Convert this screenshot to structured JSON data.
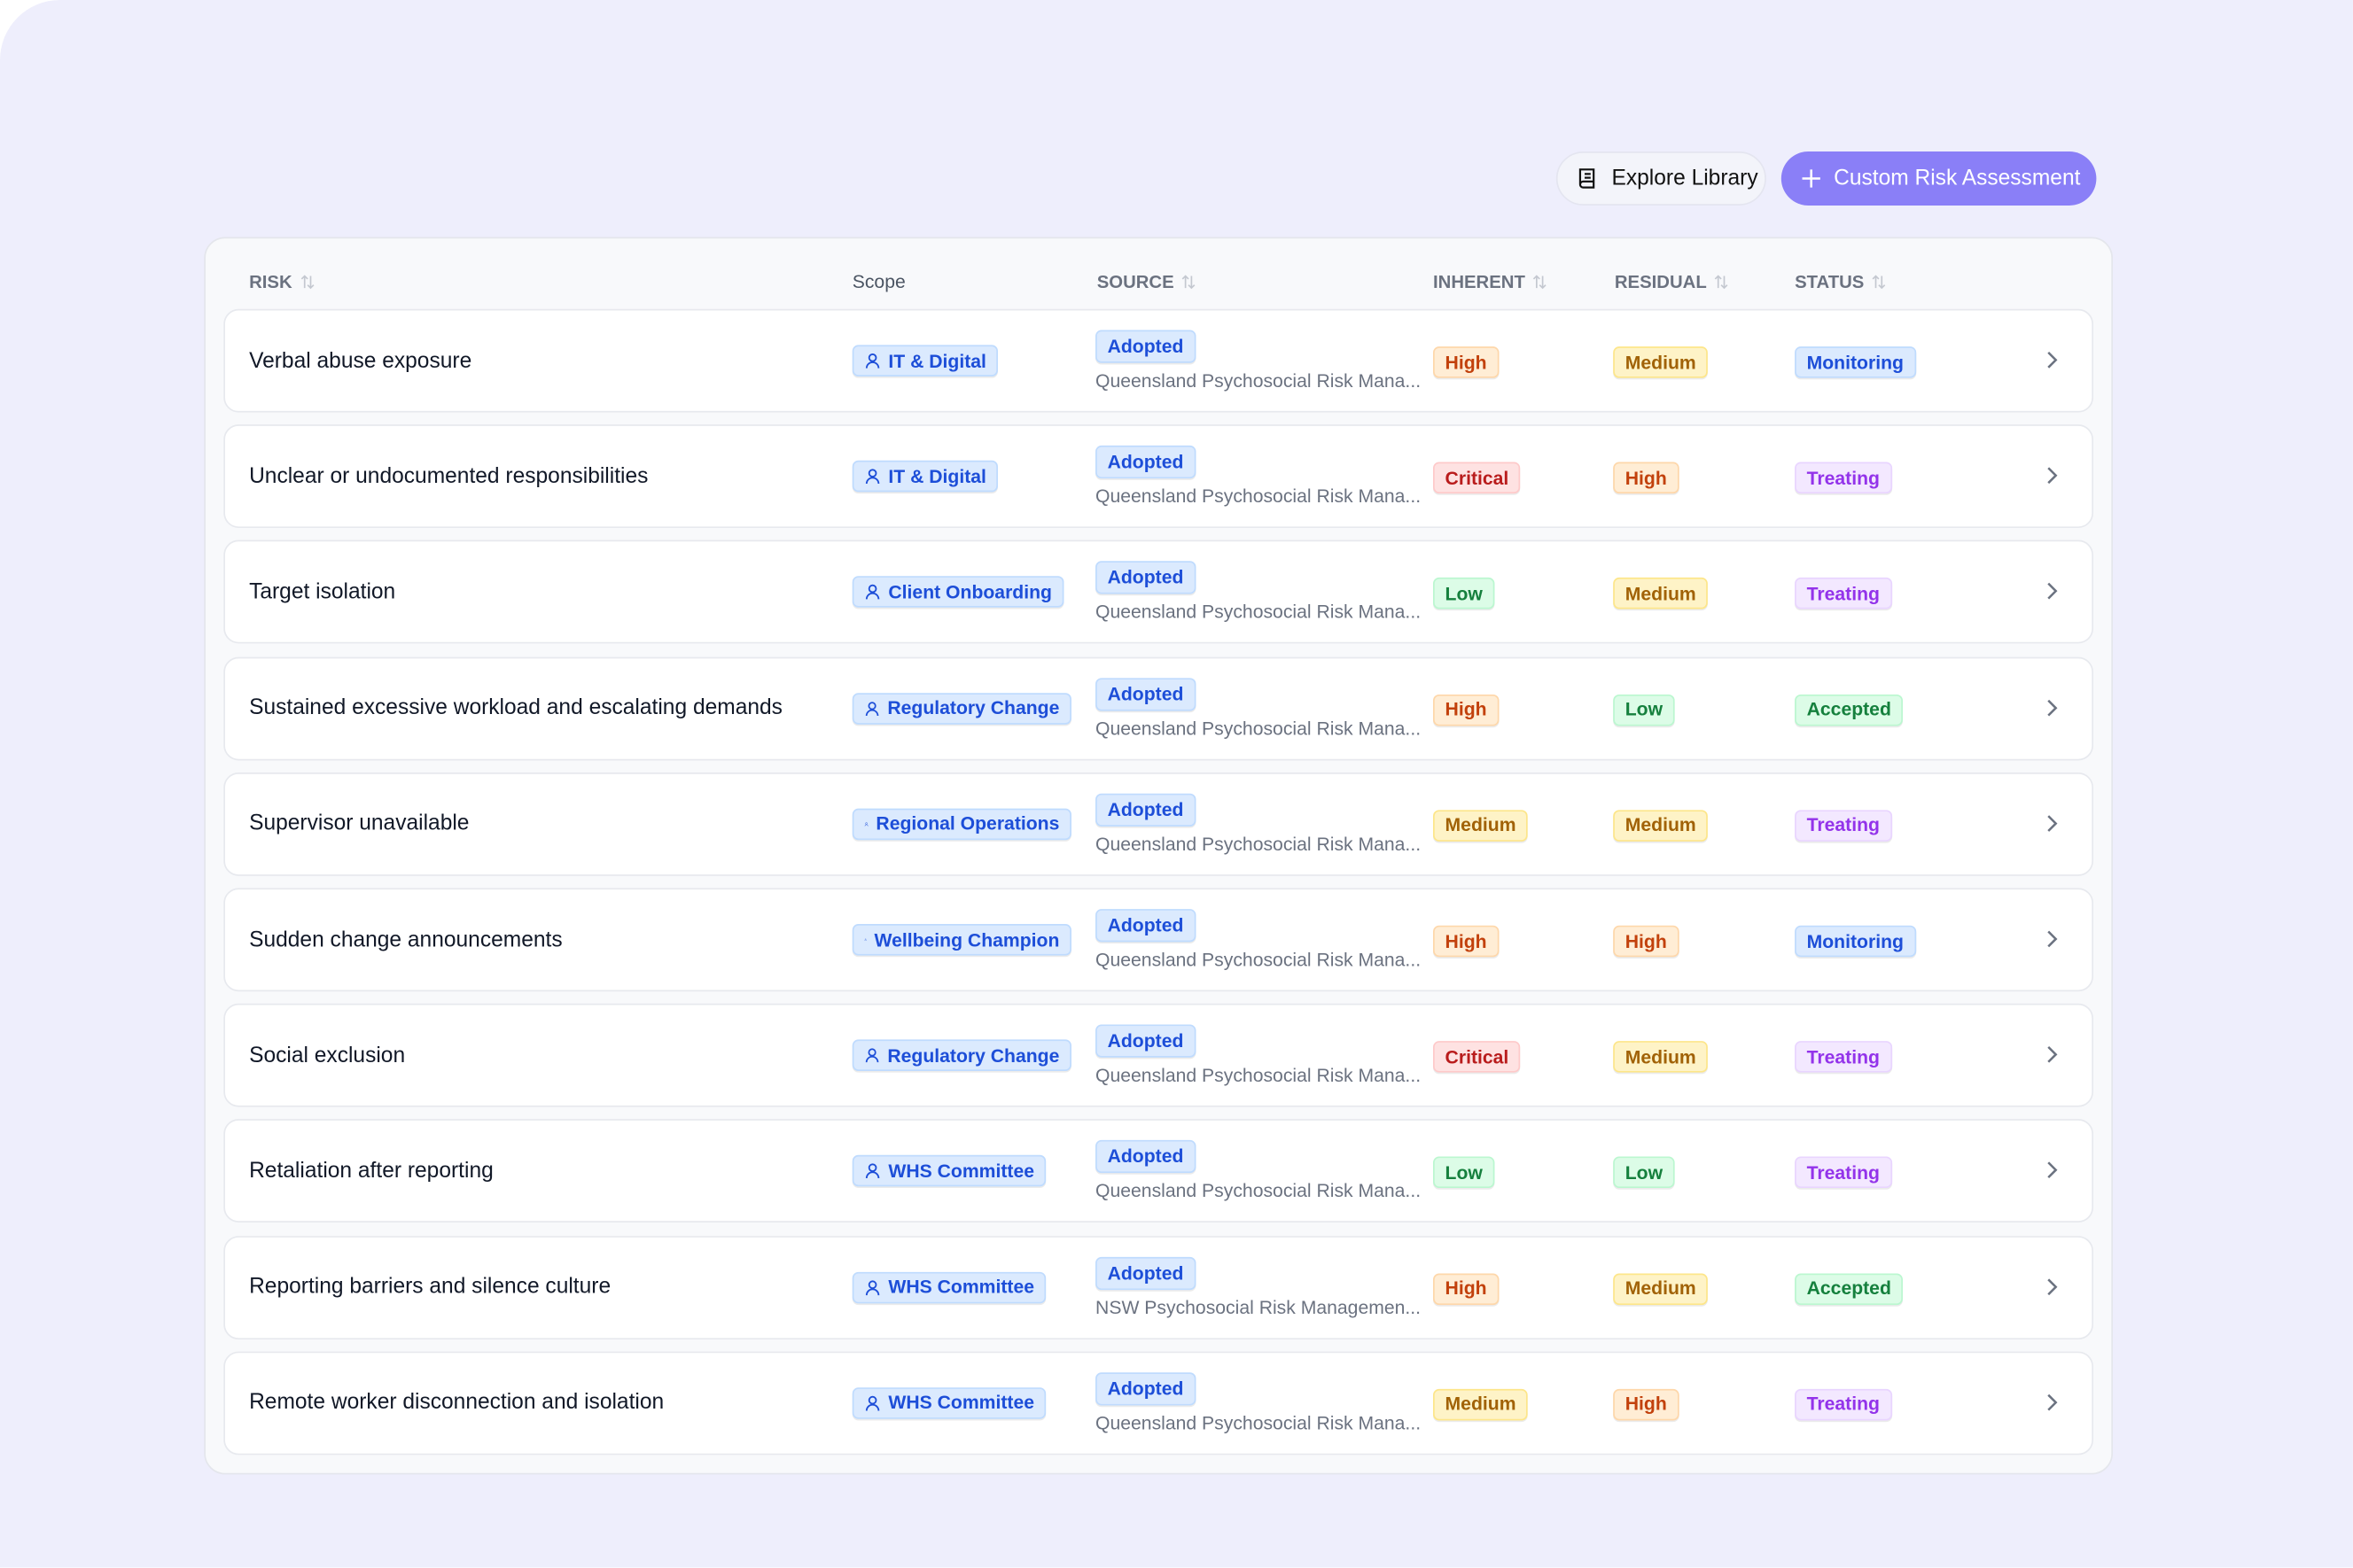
{
  "toolbar": {
    "explore_button": "Explore Library",
    "custom_button": "Custom Risk Assessment"
  },
  "table": {
    "headers": [
      "RISK",
      "Scope",
      "SOURCE",
      "INHERENT",
      "RESIDUAL",
      "STATUS"
    ],
    "rows": [
      {
        "risk": "Verbal abuse exposure",
        "scope": "IT & Digital",
        "source_badge": "Adopted",
        "source": "Queensland Psychosocial Risk Mana...",
        "inherent": {
          "label": "High",
          "tone": "orange"
        },
        "residual": {
          "label": "Medium",
          "tone": "yellow"
        },
        "status": {
          "label": "Monitoring",
          "tone": "blue"
        }
      },
      {
        "risk": "Unclear or undocumented responsibilities",
        "scope": "IT & Digital",
        "source_badge": "Adopted",
        "source": "Queensland Psychosocial Risk Mana...",
        "inherent": {
          "label": "Critical",
          "tone": "red"
        },
        "residual": {
          "label": "High",
          "tone": "orange"
        },
        "status": {
          "label": "Treating",
          "tone": "purple"
        }
      },
      {
        "risk": "Target isolation",
        "scope": "Client Onboarding",
        "source_badge": "Adopted",
        "source": "Queensland Psychosocial Risk Mana...",
        "inherent": {
          "label": "Low",
          "tone": "green"
        },
        "residual": {
          "label": "Medium",
          "tone": "yellow"
        },
        "status": {
          "label": "Treating",
          "tone": "purple"
        }
      },
      {
        "risk": "Sustained excessive workload and escalating demands",
        "scope": "Regulatory Change",
        "source_badge": "Adopted",
        "source": "Queensland Psychosocial Risk Mana...",
        "inherent": {
          "label": "High",
          "tone": "orange"
        },
        "residual": {
          "label": "Low",
          "tone": "green"
        },
        "status": {
          "label": "Accepted",
          "tone": "green"
        }
      },
      {
        "risk": "Supervisor unavailable",
        "scope": "Regional Operations",
        "source_badge": "Adopted",
        "source": "Queensland Psychosocial Risk Mana...",
        "inherent": {
          "label": "Medium",
          "tone": "yellow"
        },
        "residual": {
          "label": "Medium",
          "tone": "yellow"
        },
        "status": {
          "label": "Treating",
          "tone": "purple"
        }
      },
      {
        "risk": "Sudden change announcements",
        "scope": "Wellbeing Champion",
        "source_badge": "Adopted",
        "source": "Queensland Psychosocial Risk Mana...",
        "inherent": {
          "label": "High",
          "tone": "orange"
        },
        "residual": {
          "label": "High",
          "tone": "orange"
        },
        "status": {
          "label": "Monitoring",
          "tone": "blue"
        }
      },
      {
        "risk": "Social exclusion",
        "scope": "Regulatory Change",
        "source_badge": "Adopted",
        "source": "Queensland Psychosocial Risk Mana...",
        "inherent": {
          "label": "Critical",
          "tone": "red"
        },
        "residual": {
          "label": "Medium",
          "tone": "yellow"
        },
        "status": {
          "label": "Treating",
          "tone": "purple"
        }
      },
      {
        "risk": "Retaliation after reporting",
        "scope": "WHS Committee",
        "source_badge": "Adopted",
        "source": "Queensland Psychosocial Risk Mana...",
        "inherent": {
          "label": "Low",
          "tone": "green"
        },
        "residual": {
          "label": "Low",
          "tone": "green"
        },
        "status": {
          "label": "Treating",
          "tone": "purple"
        }
      },
      {
        "risk": "Reporting barriers and silence culture",
        "scope": "WHS Committee",
        "source_badge": "Adopted",
        "source": "NSW Psychosocial Risk Managemen...",
        "inherent": {
          "label": "High",
          "tone": "orange"
        },
        "residual": {
          "label": "Medium",
          "tone": "yellow"
        },
        "status": {
          "label": "Accepted",
          "tone": "green"
        }
      },
      {
        "risk": "Remote worker disconnection and isolation",
        "scope": "WHS Committee",
        "source_badge": "Adopted",
        "source": "Queensland Psychosocial Risk Mana...",
        "inherent": {
          "label": "Medium",
          "tone": "yellow"
        },
        "residual": {
          "label": "High",
          "tone": "orange"
        },
        "status": {
          "label": "Treating",
          "tone": "purple"
        }
      }
    ]
  }
}
